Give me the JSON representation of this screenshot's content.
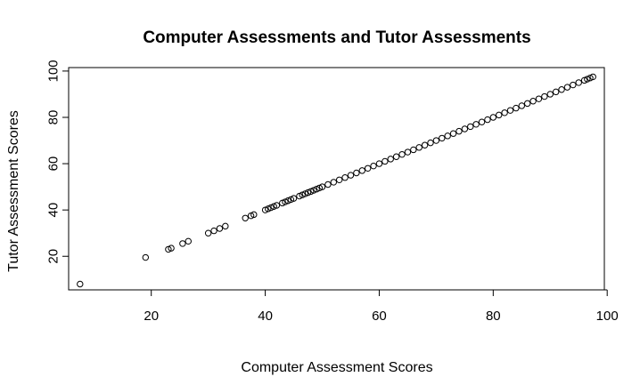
{
  "chart_data": {
    "type": "scatter",
    "title": "Computer Assessments and Tutor Assessments",
    "xlabel": "Computer Assessment Scores",
    "ylabel": "Tutor Assessment Scores",
    "xlim": [
      5.5,
      99.5
    ],
    "ylim": [
      5.5,
      101.5
    ],
    "x_ticks": [
      "20",
      "40",
      "60",
      "80",
      "100"
    ],
    "y_ticks": [
      "20",
      "40",
      "60",
      "80",
      "100"
    ],
    "grid": false,
    "legend": "none",
    "marker": "open-circle",
    "series": [
      {
        "x": [
          7.5,
          19,
          23,
          23.5,
          25.5,
          26.5,
          30,
          31,
          32,
          33,
          36.5,
          37.5,
          38,
          40,
          40.5,
          41,
          41.5,
          42,
          43,
          43.5,
          44,
          44.5,
          45,
          46,
          46.5,
          47,
          47.5,
          48,
          48.5,
          49,
          49.5,
          50,
          51,
          52,
          53,
          54,
          55,
          56,
          57,
          58,
          59,
          60,
          61,
          62,
          63,
          64,
          65,
          66,
          67,
          68,
          69,
          70,
          71,
          72,
          73,
          74,
          75,
          76,
          77,
          78,
          79,
          80,
          81,
          82,
          83,
          84,
          85,
          86,
          87,
          88,
          89,
          90,
          91,
          92,
          93,
          94,
          95,
          96,
          96.5,
          97,
          97.5
        ],
        "y": [
          8,
          19.5,
          23,
          23.5,
          25.5,
          26.5,
          30,
          31,
          32,
          33,
          36.5,
          37.5,
          38,
          40,
          40.5,
          41,
          41.5,
          42,
          43,
          43.5,
          44,
          44.5,
          45,
          46,
          46.5,
          47,
          47.5,
          48,
          48.5,
          49,
          49.5,
          50,
          51,
          52,
          53,
          54,
          55,
          56,
          57,
          58,
          59,
          60,
          61,
          62,
          63,
          64,
          65,
          66,
          67,
          68,
          69,
          70,
          71,
          72,
          73,
          74,
          75,
          76,
          77,
          78,
          79,
          80,
          81,
          82,
          83,
          84,
          85,
          86,
          87,
          88,
          89,
          90,
          91,
          92,
          93,
          94,
          95,
          96,
          96.5,
          97,
          97.5
        ]
      }
    ]
  }
}
